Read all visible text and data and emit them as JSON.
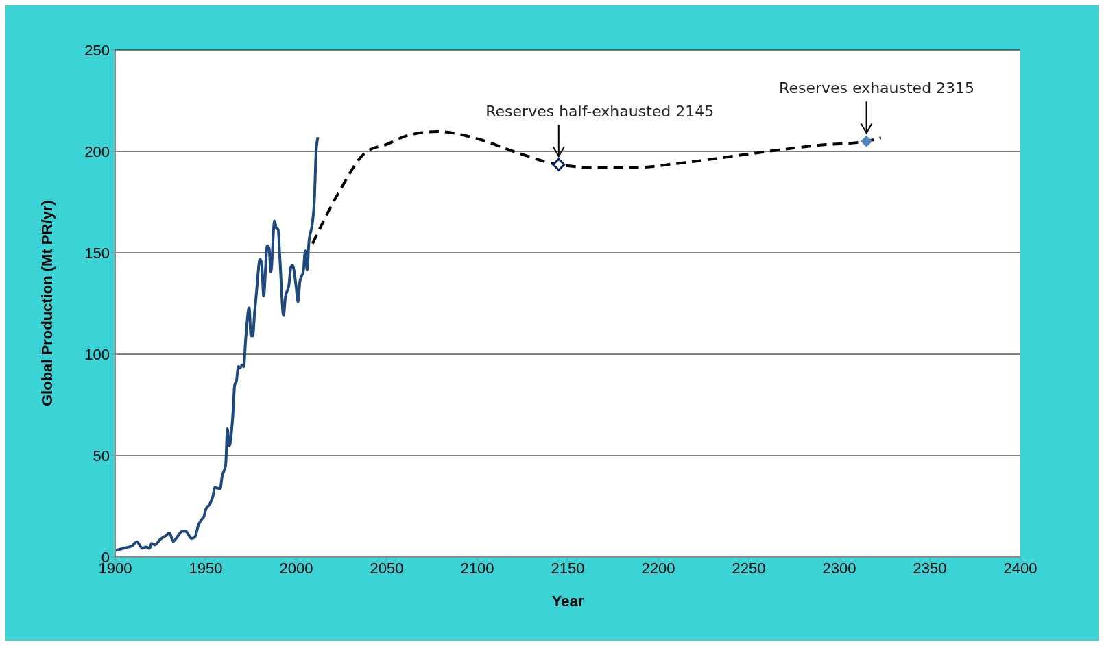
{
  "chart_data": {
    "type": "line",
    "xlabel": "Year",
    "ylabel": "Global Production (Mt PR/yr)",
    "xlim": [
      1900,
      2400
    ],
    "xticks": [
      1900,
      1950,
      2000,
      2050,
      2100,
      2150,
      2200,
      2250,
      2300,
      2350,
      2400
    ],
    "ylim": [
      0,
      250
    ],
    "yticks": [
      0,
      50,
      100,
      150,
      200,
      250
    ],
    "grid": "y",
    "series": [
      {
        "color": "#1f497d",
        "line_style": "solid",
        "marker": "none",
        "x": [
          1900,
          1906,
          1909,
          1912,
          1915,
          1917,
          1919,
          1920,
          1922,
          1925,
          1928,
          1930,
          1932,
          1934,
          1937,
          1939,
          1941,
          1942,
          1944,
          1946,
          1948,
          1949,
          1950,
          1952,
          1954,
          1955,
          1958,
          1959,
          1961,
          1962,
          1963,
          1965,
          1966,
          1967,
          1968,
          1969,
          1970,
          1971,
          1972,
          1974,
          1975,
          1976,
          1977,
          1978,
          1980,
          1981,
          1982,
          1984,
          1985,
          1986,
          1988,
          1989,
          1990,
          1991,
          1993,
          1994,
          1996,
          1997,
          1998,
          2000,
          2001,
          2002,
          2004,
          2005,
          2006,
          2007,
          2009,
          2010,
          2011,
          2012
        ],
        "values": [
          3.2,
          4.6,
          5.3,
          7.4,
          4.3,
          4.9,
          4.2,
          6.7,
          6,
          8.8,
          10.5,
          11.9,
          7.7,
          9.5,
          12.7,
          12.7,
          10.2,
          9.1,
          9.8,
          15.8,
          18.8,
          19.9,
          23.4,
          25.8,
          30,
          34.2,
          33.6,
          39.5,
          45.3,
          63.2,
          54.8,
          70.2,
          84.8,
          86.9,
          93.9,
          93.2,
          94.6,
          93.9,
          106.4,
          122.9,
          109,
          109,
          120.4,
          130,
          146.9,
          144,
          128.7,
          153.5,
          152.4,
          140.6,
          165.7,
          162.2,
          161.5,
          146.9,
          119,
          128,
          134.3,
          142.7,
          143.8,
          132.9,
          125.7,
          135.7,
          141.3,
          151,
          141.6,
          155.2,
          165,
          175.4,
          199.8,
          207
        ]
      },
      {
        "color": "#000000",
        "line_style": "dashed",
        "marker": "none",
        "x": [
          2009,
          2023,
          2039,
          2050,
          2062,
          2078,
          2101,
          2120,
          2145,
          2167,
          2187,
          2210,
          2241,
          2264,
          2288,
          2315,
          2323
        ],
        "values": [
          154.5,
          179,
          200,
          203.5,
          208,
          209.8,
          206,
          200,
          193.5,
          192,
          192,
          194,
          197.6,
          200.4,
          203,
          205,
          206.7
        ]
      },
      {
        "type": "scatter",
        "color": "#002060",
        "marker": "diamond-open",
        "x": [
          2145
        ],
        "values": [
          193.5
        ]
      },
      {
        "type": "scatter",
        "color": "#4f81bd",
        "marker": "diamond",
        "x": [
          2315
        ],
        "values": [
          205
        ]
      }
    ],
    "annotations": [
      {
        "text": "Reserves half-exhausted 2145",
        "x": 2145,
        "y": 193.5
      },
      {
        "text": "Reserves exhausted 2315",
        "x": 2315,
        "y": 205
      }
    ]
  }
}
